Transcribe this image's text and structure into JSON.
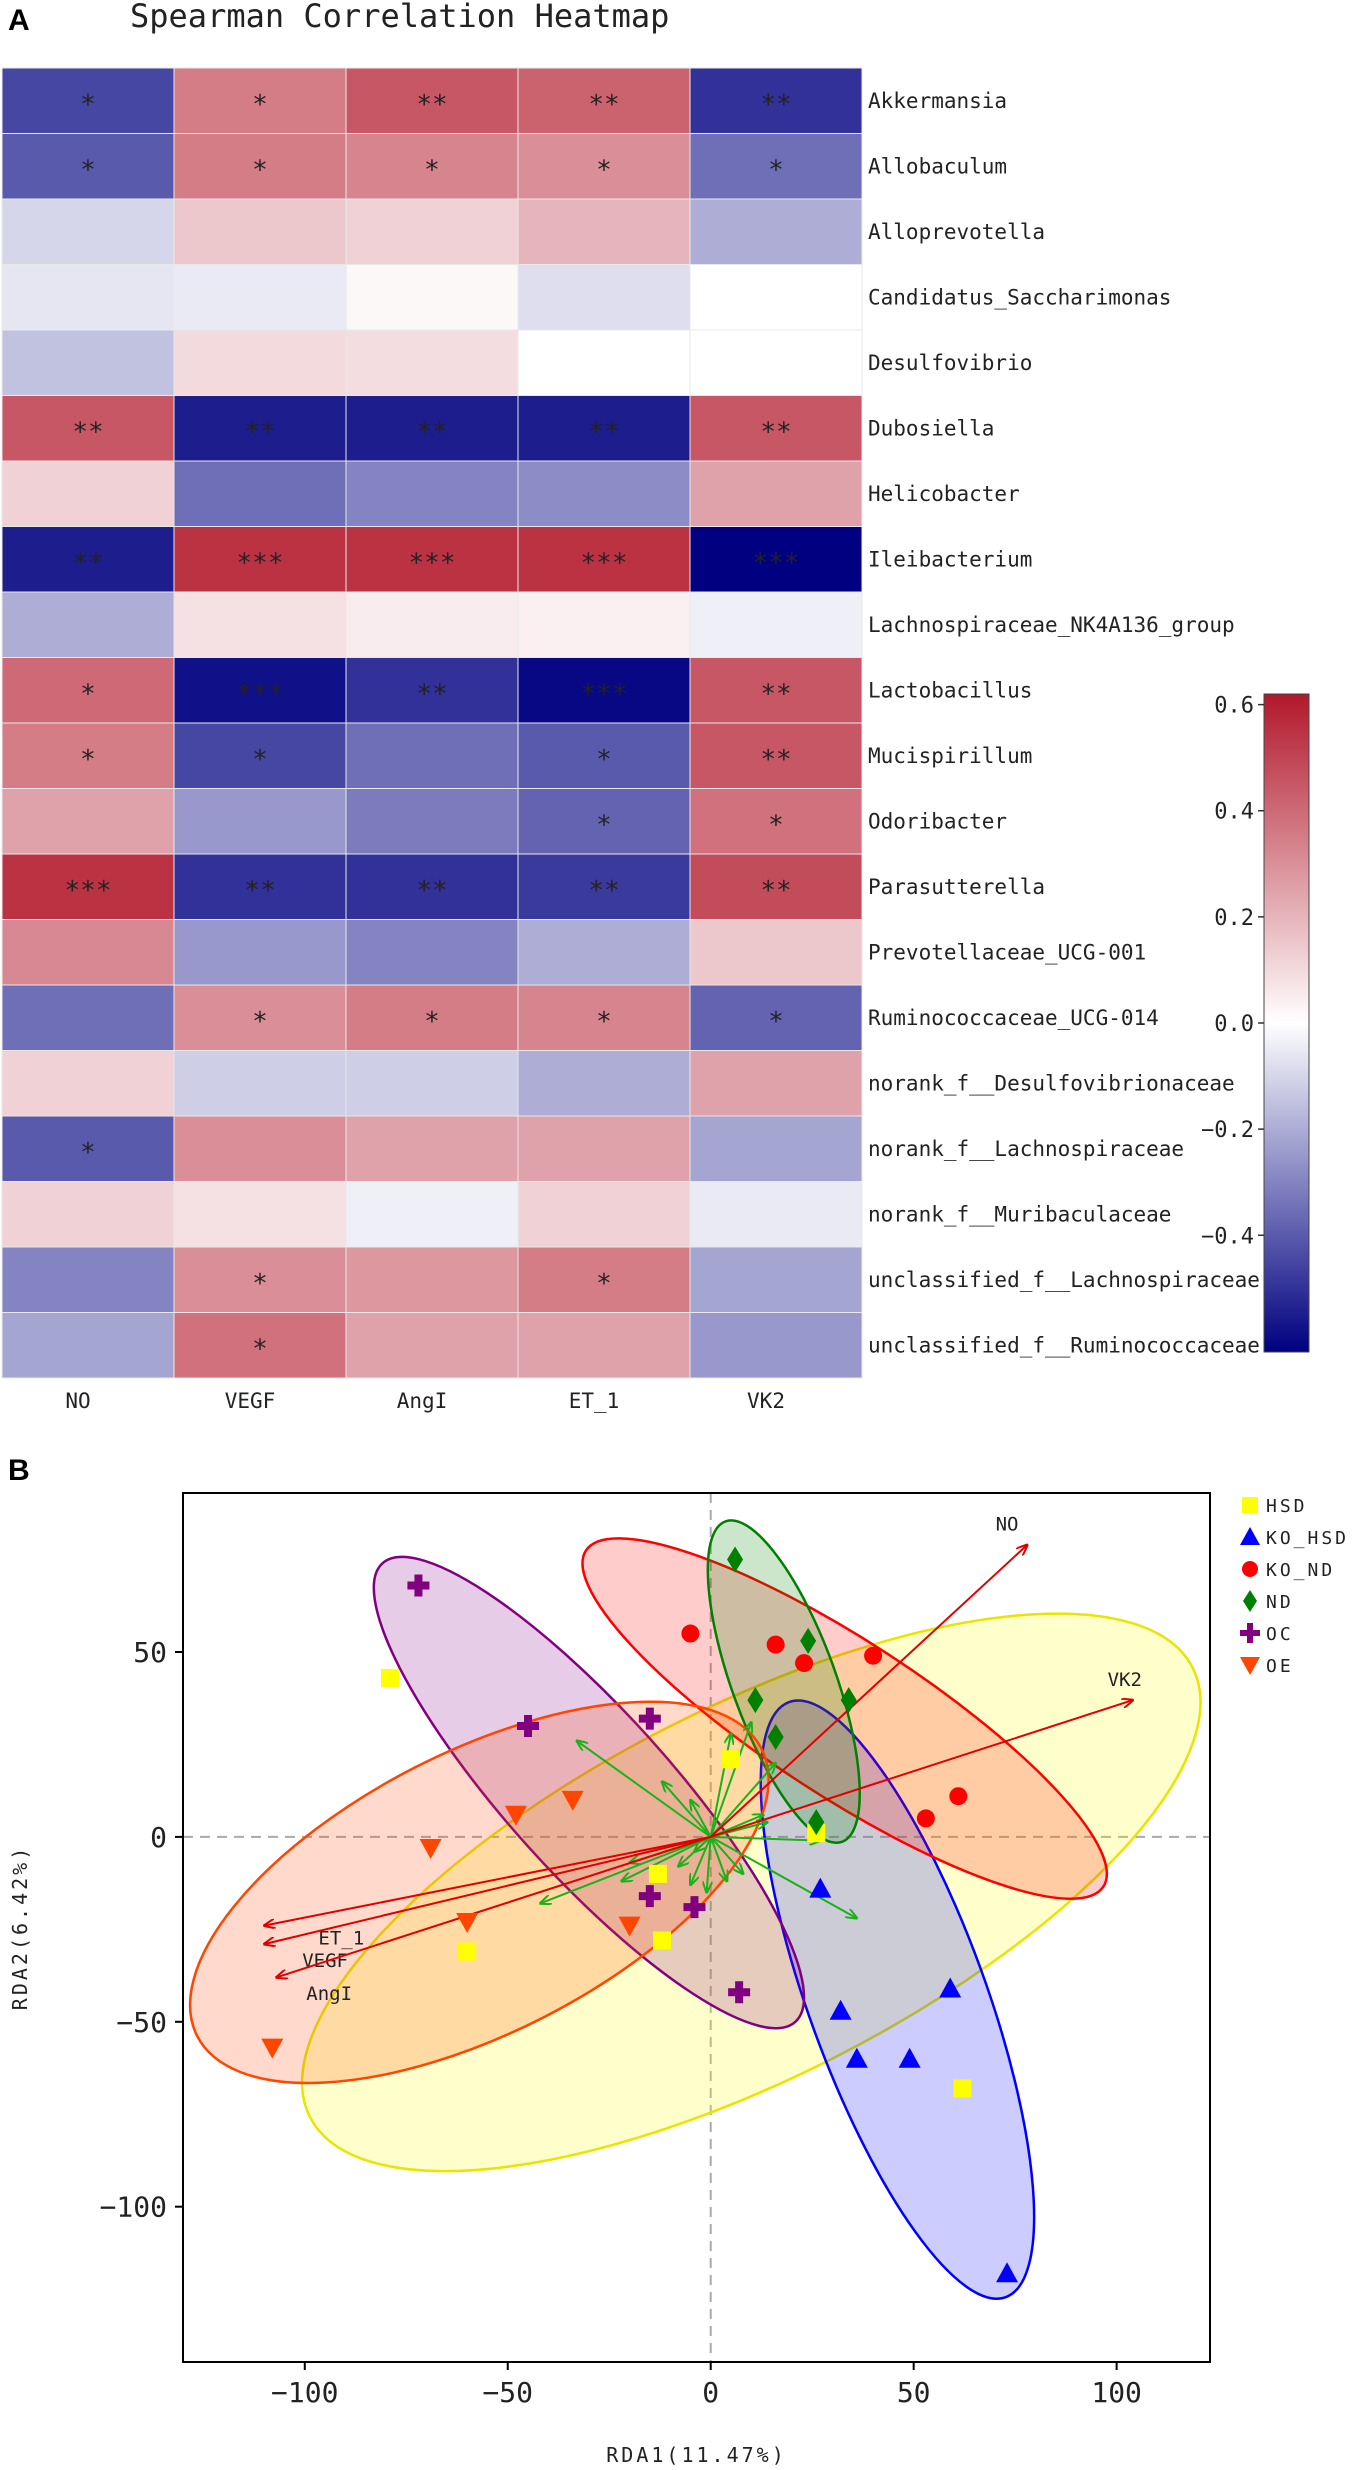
{
  "chart_data": [
    {
      "type": "heatmap",
      "panel_label": "A",
      "title": "Spearman Correlation Heatmap",
      "columns": [
        "NO",
        "VEGF",
        "AngI",
        "ET_1",
        "VK2"
      ],
      "rows": [
        "Akkermansia",
        "Allobaculum",
        "Alloprevotella",
        "Candidatus_Saccharimonas",
        "Desulfovibrio",
        "Dubosiella",
        "Helicobacter",
        "Ileibacterium",
        "Lachnospiraceae_NK4A136_group",
        "Lactobacillus",
        "Mucispirillum",
        "Odoribacter",
        "Parasutterella",
        "Prevotellaceae_UCG-001",
        "Ruminococcaceae_UCG-014",
        "norank_f__Desulfovibrionaceae",
        "norank_f__Lachnospiraceae",
        "norank_f__Muribaculaceae",
        "unclassified_f__Lachnospiraceae",
        "unclassified_f__Ruminococcaceae"
      ],
      "values": [
        [
          -0.45,
          0.35,
          0.45,
          0.42,
          -0.5
        ],
        [
          -0.4,
          0.35,
          0.33,
          0.3,
          -0.35
        ],
        [
          -0.1,
          0.15,
          0.12,
          0.2,
          -0.2
        ],
        [
          -0.06,
          -0.05,
          0.02,
          -0.08,
          0.0
        ],
        [
          -0.15,
          0.1,
          0.09,
          0.0,
          0.0
        ],
        [
          0.45,
          -0.55,
          -0.55,
          -0.55,
          0.45
        ],
        [
          0.12,
          -0.35,
          -0.3,
          -0.28,
          0.25
        ],
        [
          -0.55,
          0.55,
          0.55,
          0.55,
          -0.62
        ],
        [
          -0.2,
          0.08,
          0.05,
          0.04,
          -0.04
        ],
        [
          0.4,
          -0.58,
          -0.5,
          -0.6,
          0.45
        ],
        [
          0.35,
          -0.45,
          -0.35,
          -0.4,
          0.45
        ],
        [
          0.25,
          -0.25,
          -0.32,
          -0.38,
          0.38
        ],
        [
          0.55,
          -0.5,
          -0.5,
          -0.48,
          0.48
        ],
        [
          0.32,
          -0.25,
          -0.3,
          -0.2,
          0.15
        ],
        [
          -0.35,
          0.3,
          0.35,
          0.33,
          -0.38
        ],
        [
          0.12,
          -0.12,
          -0.12,
          -0.2,
          0.25
        ],
        [
          -0.4,
          0.3,
          0.25,
          0.25,
          -0.22
        ],
        [
          0.12,
          0.08,
          -0.04,
          0.12,
          -0.05
        ],
        [
          -0.3,
          0.3,
          0.28,
          0.35,
          -0.22
        ],
        [
          -0.22,
          0.38,
          0.25,
          0.25,
          -0.25
        ]
      ],
      "stars": [
        [
          "*",
          "*",
          "**",
          "**",
          "**"
        ],
        [
          "*",
          "*",
          "*",
          "*",
          "*"
        ],
        [
          "",
          "",
          "",
          "",
          ""
        ],
        [
          "",
          "",
          "",
          "",
          ""
        ],
        [
          "",
          "",
          "",
          "",
          ""
        ],
        [
          "**",
          "**",
          "**",
          "**",
          "**"
        ],
        [
          "",
          "",
          "",
          "",
          ""
        ],
        [
          "**",
          "***",
          "***",
          "***",
          "***"
        ],
        [
          "",
          "",
          "",
          "",
          ""
        ],
        [
          "*",
          "***",
          "**",
          "***",
          "**"
        ],
        [
          "*",
          "*",
          "",
          "*",
          "**"
        ],
        [
          "",
          "",
          "",
          "*",
          "*"
        ],
        [
          "***",
          "**",
          "**",
          "**",
          "**"
        ],
        [
          "",
          "",
          "",
          "",
          ""
        ],
        [
          "",
          "*",
          "*",
          "*",
          "*"
        ],
        [
          "",
          "",
          "",
          "",
          ""
        ],
        [
          "*",
          "",
          "",
          "",
          ""
        ],
        [
          "",
          "",
          "",
          "",
          ""
        ],
        [
          "",
          "*",
          "",
          "*",
          ""
        ],
        [
          "",
          "*",
          "",
          "",
          ""
        ]
      ],
      "colorbar": {
        "min": -0.62,
        "max": 0.62,
        "ticks": [
          0.6,
          0.4,
          0.2,
          0.0,
          -0.2,
          -0.4
        ],
        "tick_labels": [
          "0.6",
          "0.4",
          "0.2",
          "0.0",
          "−0.2",
          "−0.4"
        ],
        "low_color": "#000080",
        "mid_color": "#ffffff",
        "high_color": "#b2182b"
      }
    },
    {
      "type": "scatter",
      "panel_label": "B",
      "xlabel": "RDA1(11.47%)",
      "ylabel": "RDA2(6.42%)",
      "xlim": [
        -130,
        123
      ],
      "ylim": [
        -142,
        93
      ],
      "xticks": [
        -100,
        -50,
        0,
        50,
        100
      ],
      "yticks": [
        50,
        0,
        -50,
        -100
      ],
      "xtick_labels": [
        "−100",
        "−50",
        "0",
        "50",
        "100"
      ],
      "ytick_labels": [
        "50",
        "0",
        "−50",
        "−100"
      ],
      "groups": [
        {
          "name": "HSD",
          "color": "#ffff00",
          "stroke": "#e6c800",
          "marker": "square",
          "points": [
            [
              -79,
              43
            ],
            [
              5,
              21
            ],
            [
              -13,
              -10
            ],
            [
              -60,
              -31
            ],
            [
              -12,
              -28
            ],
            [
              26,
              1
            ],
            [
              62,
              -68
            ]
          ],
          "ellipse": {
            "cx": 10,
            "cy": -15,
            "rx": 122,
            "ry": 50,
            "angle": -27
          }
        },
        {
          "name": "KO_HSD",
          "color": "#0000ff",
          "stroke": "#0000cc",
          "marker": "triangle",
          "points": [
            [
              27,
              -14
            ],
            [
              32,
              -47
            ],
            [
              36,
              -60
            ],
            [
              59,
              -41
            ],
            [
              49,
              -60
            ],
            [
              73,
              -118
            ]
          ],
          "ellipse": {
            "cx": 46,
            "cy": -44,
            "rx": 78,
            "ry": 24,
            "angle": 70
          }
        },
        {
          "name": "KO_ND",
          "color": "#ff0000",
          "stroke": "#cc0000",
          "marker": "circle",
          "points": [
            [
              -5,
              55
            ],
            [
              16,
              52
            ],
            [
              23,
              47
            ],
            [
              40,
              49
            ],
            [
              61,
              11
            ],
            [
              53,
              5
            ]
          ],
          "ellipse": {
            "cx": 33,
            "cy": 32,
            "rx": 76,
            "ry": 21,
            "angle": 33
          }
        },
        {
          "name": "ND",
          "color": "#008000",
          "stroke": "#005a00",
          "marker": "diamond",
          "points": [
            [
              6,
              75
            ],
            [
              24,
              53
            ],
            [
              11,
              37
            ],
            [
              16,
              27
            ],
            [
              34,
              37
            ],
            [
              26,
              4
            ]
          ],
          "ellipse": {
            "cx": 18,
            "cy": 42,
            "rx": 42,
            "ry": 14,
            "angle": 70
          }
        },
        {
          "name": "OC",
          "color": "#800080",
          "stroke": "#5a005a",
          "marker": "cross",
          "points": [
            [
              -72,
              68
            ],
            [
              -45,
              30
            ],
            [
              -15,
              32
            ],
            [
              -15,
              -16
            ],
            [
              -4,
              -19
            ],
            [
              7,
              -42
            ]
          ],
          "ellipse": {
            "cx": -30,
            "cy": 12,
            "rx": 76,
            "ry": 22,
            "angle": 48
          }
        },
        {
          "name": "OE",
          "color": "#ff4500",
          "stroke": "#cc3300",
          "marker": "triangle-down",
          "points": [
            [
              -69,
              -3
            ],
            [
              -48,
              6
            ],
            [
              -34,
              10
            ],
            [
              -60,
              -23
            ],
            [
              -20,
              -24
            ],
            [
              -108,
              -57
            ]
          ],
          "ellipse": {
            "cx": -57,
            "cy": -15,
            "rx": 78,
            "ry": 38,
            "angle": -27
          }
        }
      ],
      "env_arrows": [
        {
          "name": "NO",
          "x": 78,
          "y": 79,
          "label_x": 73,
          "label_y": 85
        },
        {
          "name": "VK2",
          "x": 104,
          "y": 37,
          "label_x": 102,
          "label_y": 43
        },
        {
          "name": "ET_1",
          "x": -110,
          "y": -24,
          "label_x": -91,
          "label_y": -27
        },
        {
          "name": "VEGF",
          "x": -110,
          "y": -29,
          "label_x": -95,
          "label_y": -33
        },
        {
          "name": "AngI",
          "x": -107,
          "y": -38,
          "label_x": -94,
          "label_y": -42
        }
      ],
      "species_arrows": [
        [
          -33,
          26
        ],
        [
          -12,
          15
        ],
        [
          -5,
          10
        ],
        [
          -42,
          -18
        ],
        [
          -22,
          -12
        ],
        [
          5,
          28
        ],
        [
          10,
          31
        ],
        [
          16,
          20
        ],
        [
          13,
          6
        ],
        [
          14,
          4
        ],
        [
          27,
          -1
        ],
        [
          36,
          -22
        ],
        [
          -1,
          -15
        ],
        [
          -5,
          -13
        ],
        [
          -20,
          -7
        ],
        [
          -8,
          -8
        ],
        [
          8,
          -10
        ],
        [
          4,
          -12
        ],
        [
          -4,
          -4
        ]
      ]
    }
  ]
}
